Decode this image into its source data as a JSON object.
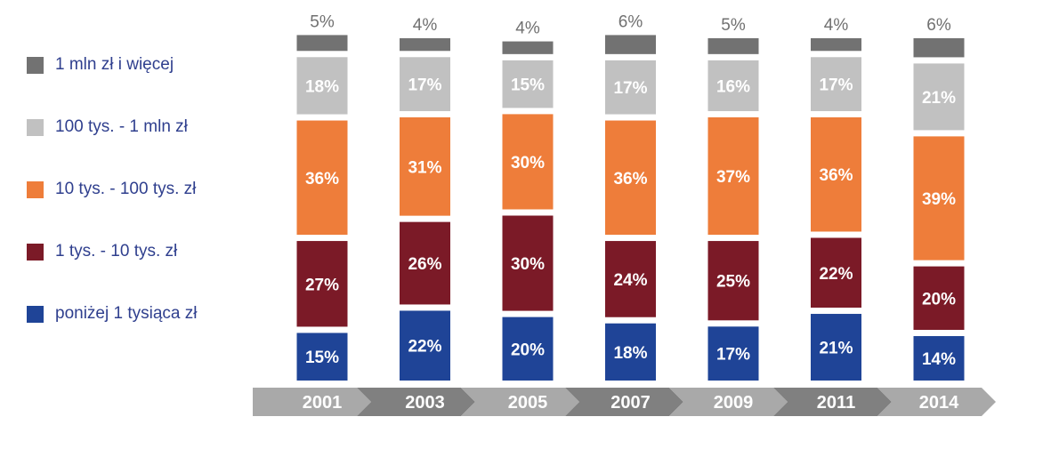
{
  "chart_data": {
    "type": "bar",
    "stacked": true,
    "categories": [
      "2001",
      "2003",
      "2005",
      "2007",
      "2009",
      "2011",
      "2014"
    ],
    "series": [
      {
        "name": "poniżej 1 tysiąca zł",
        "color": "#1f4497",
        "values": [
          15,
          22,
          20,
          18,
          17,
          21,
          14
        ],
        "labels": [
          "15%",
          "22%",
          "20%",
          "18%",
          "17%",
          "21%",
          "14%"
        ]
      },
      {
        "name": "1 tys. - 10 tys. zł",
        "color": "#7b1a27",
        "values": [
          27,
          26,
          30,
          24,
          25,
          22,
          20
        ],
        "labels": [
          "27%",
          "26%",
          "30%",
          "24%",
          "25%",
          "22%",
          "20%"
        ]
      },
      {
        "name": "10 tys. - 100 tys. zł",
        "color": "#ee7d3a",
        "values": [
          36,
          31,
          30,
          36,
          37,
          36,
          39
        ],
        "labels": [
          "36%",
          "31%",
          "30%",
          "36%",
          "37%",
          "36%",
          "39%"
        ]
      },
      {
        "name": "100 tys. - 1 mln zł",
        "color": "#c1c1c1",
        "values": [
          18,
          17,
          15,
          17,
          16,
          17,
          21
        ],
        "labels": [
          "18%",
          "17%",
          "15%",
          "17%",
          "16%",
          "17%",
          "21%"
        ]
      },
      {
        "name": "1 mln zł i więcej",
        "color": "#727272",
        "values": [
          5,
          4,
          4,
          6,
          5,
          4,
          6
        ],
        "labels": [
          "5%",
          "4%",
          "4%",
          "6%",
          "5%",
          "4%",
          "6%"
        ]
      }
    ],
    "legend_order": [
      "1 mln zł i więcej",
      "100 tys. - 1 mln zł",
      "10 tys. - 100 tys. zł",
      "1 tys. - 10 tys. zł",
      "poniżej 1 tysiąca zł"
    ],
    "legend_position": "left",
    "value_unit": "%",
    "category_band_colors": [
      "#a9a9a9",
      "#808080"
    ],
    "title": "",
    "xlabel": "",
    "ylabel": ""
  }
}
